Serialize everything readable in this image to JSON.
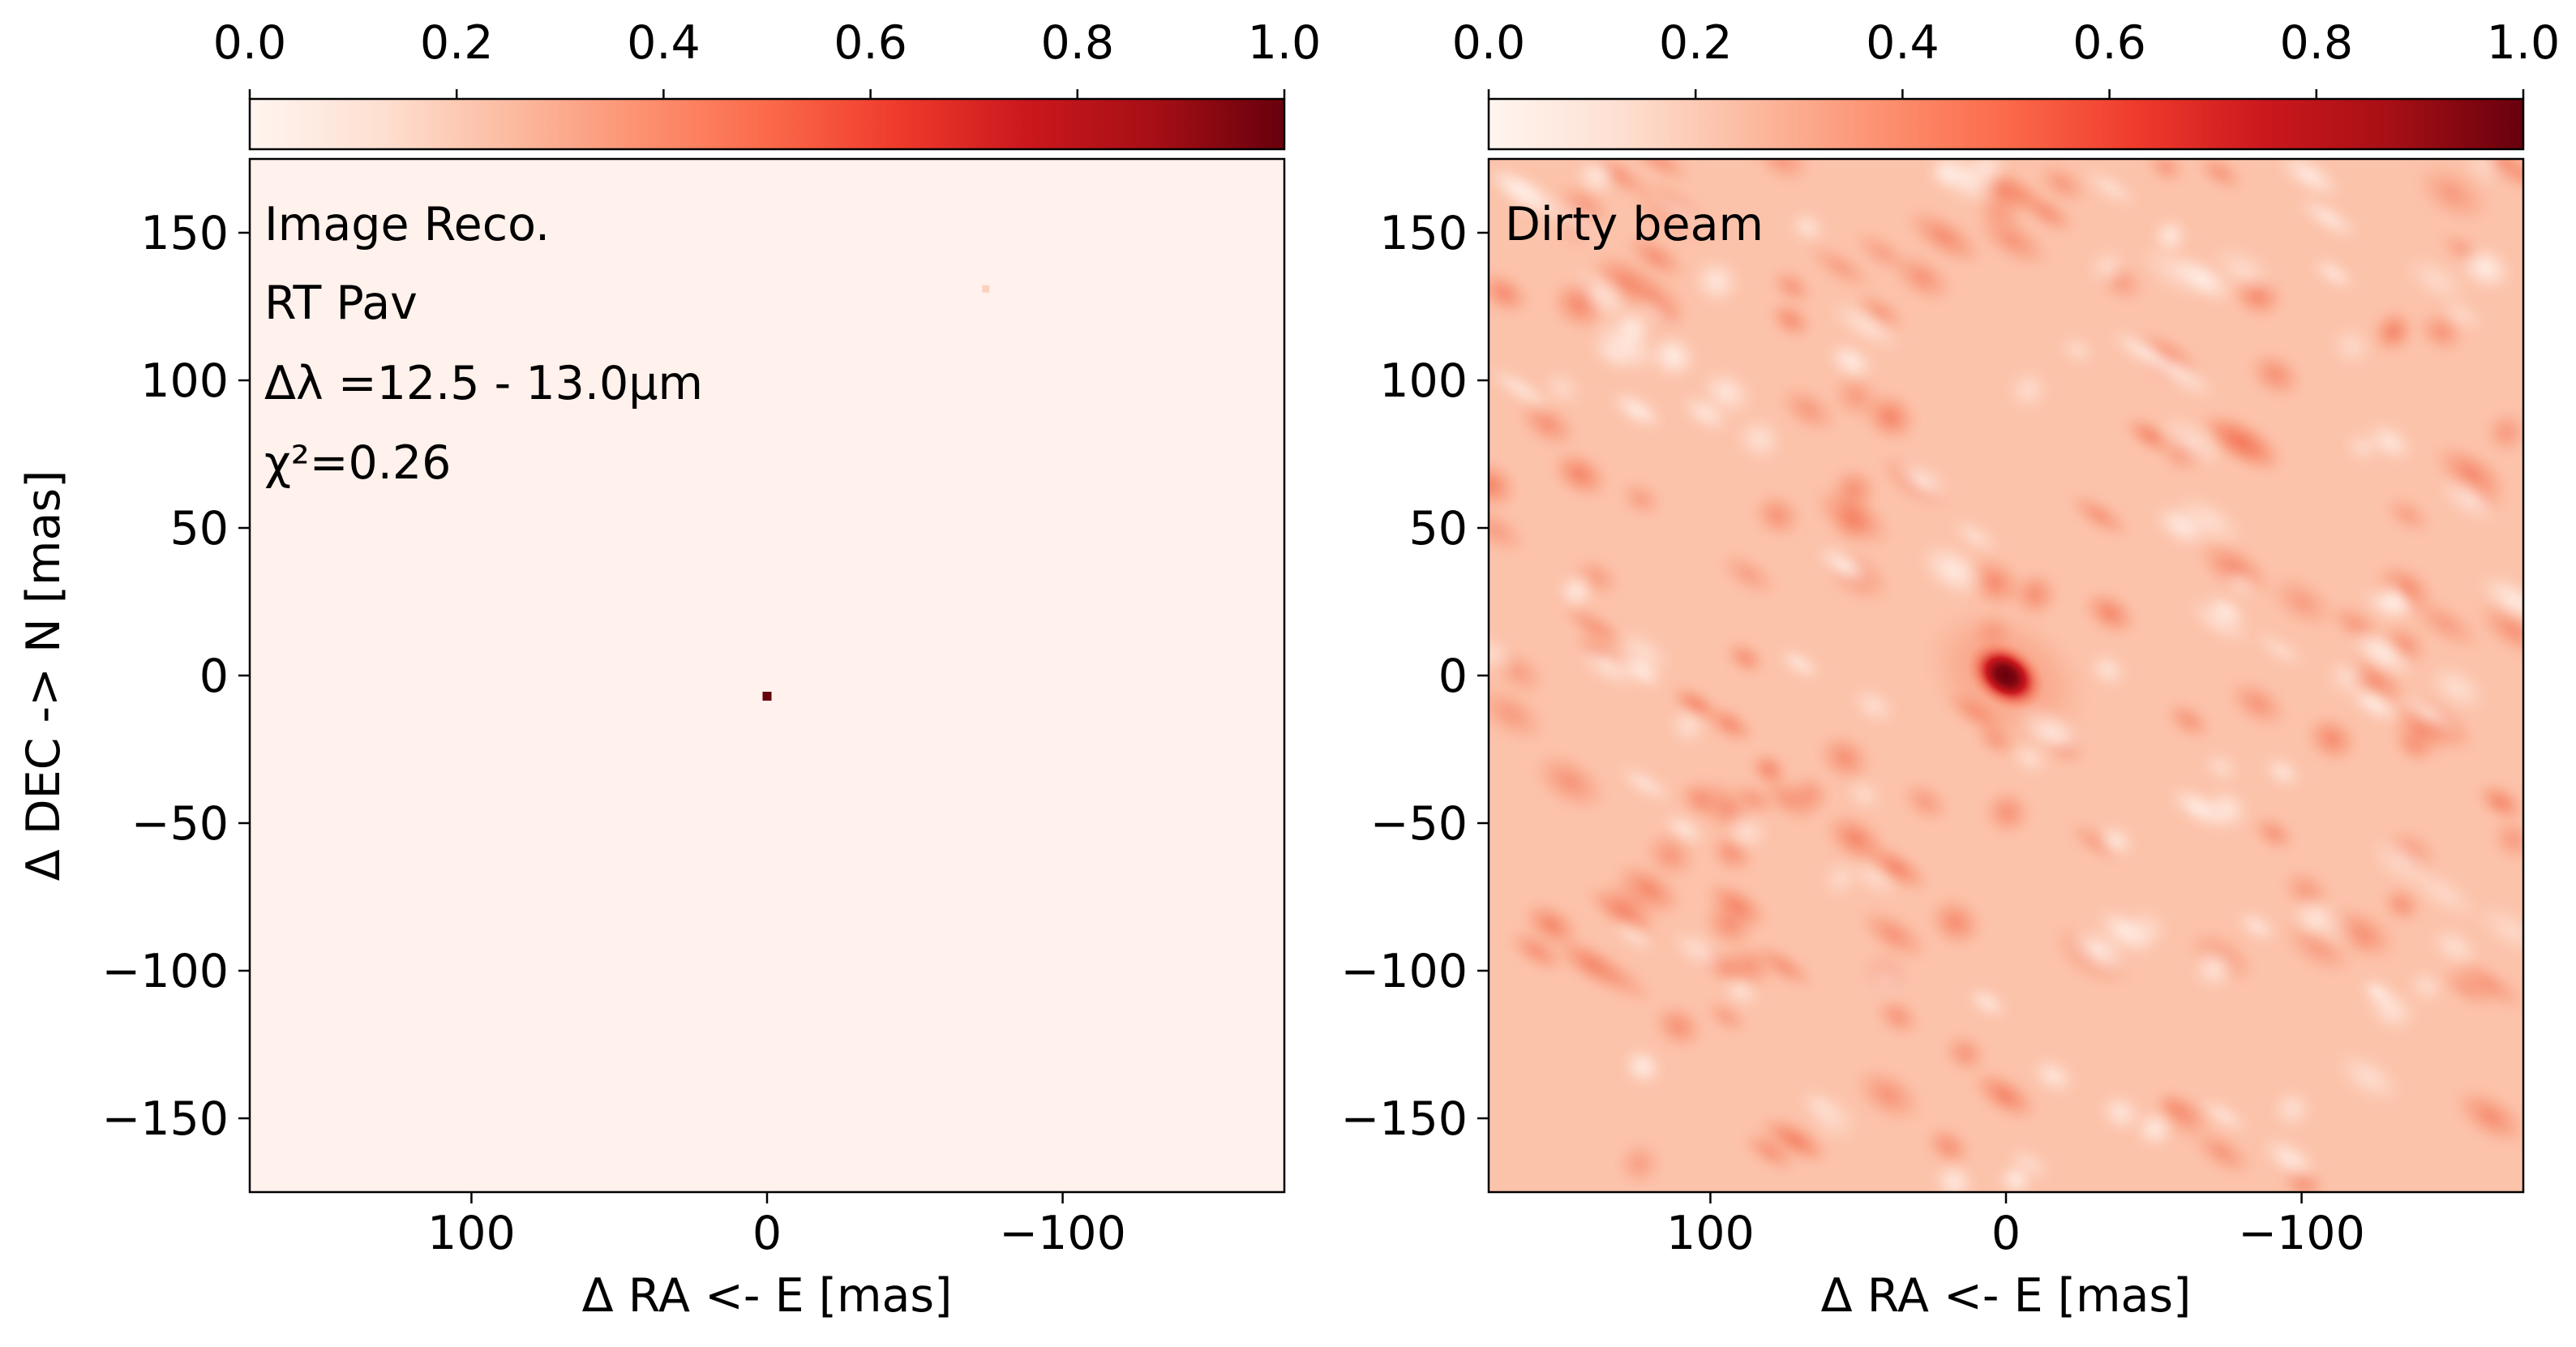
{
  "chart_data": [
    {
      "type": "heatmap",
      "colormap": "Reds",
      "colorbar": {
        "ticks": [
          "0.0",
          "0.2",
          "0.4",
          "0.6",
          "0.8",
          "1.0"
        ],
        "range": [
          0,
          1
        ],
        "placement": "top"
      },
      "xlabel": "Δ RA <- E [mas]",
      "ylabel": "Δ DEC -> N [mas]",
      "xlim": [
        175,
        -175
      ],
      "ylim": [
        -175,
        175
      ],
      "xticks": [
        100,
        0,
        -100
      ],
      "xtick_labels": [
        "100",
        "0",
        "−100"
      ],
      "yticks": [
        150,
        100,
        50,
        0,
        -50,
        -100,
        -150
      ],
      "ytick_labels": [
        "150",
        "100",
        "50",
        "0",
        "−50",
        "−100",
        "−150"
      ],
      "annotations": [
        "Image Reco.",
        "RT Pav",
        "Δλ =12.5 - 13.0μm",
        "χ²=0.26"
      ],
      "background_level": 0.03,
      "features": [
        {
          "ra": 0,
          "dec": -7,
          "value": 1.0
        },
        {
          "ra": -74,
          "dec": 131,
          "value": 0.12
        }
      ]
    },
    {
      "type": "heatmap",
      "colormap": "Reds",
      "colorbar": {
        "ticks": [
          "0.0",
          "0.2",
          "0.4",
          "0.6",
          "0.8",
          "1.0"
        ],
        "range": [
          0,
          1
        ],
        "placement": "top"
      },
      "xlabel": "Δ RA <- E [mas]",
      "ylabel": "",
      "xlim": [
        175,
        -175
      ],
      "ylim": [
        -175,
        175
      ],
      "xticks": [
        100,
        0,
        -100
      ],
      "xtick_labels": [
        "100",
        "0",
        "−100"
      ],
      "yticks": [
        150,
        100,
        50,
        0,
        -50,
        -100,
        -150
      ],
      "ytick_labels": [
        "150",
        "100",
        "50",
        "0",
        "−50",
        "−100",
        "−150"
      ],
      "annotations": [
        "Dirty beam"
      ],
      "peak": {
        "ra": 0,
        "dec": 0,
        "value": 1.0
      },
      "background_level": 0.25
    }
  ]
}
